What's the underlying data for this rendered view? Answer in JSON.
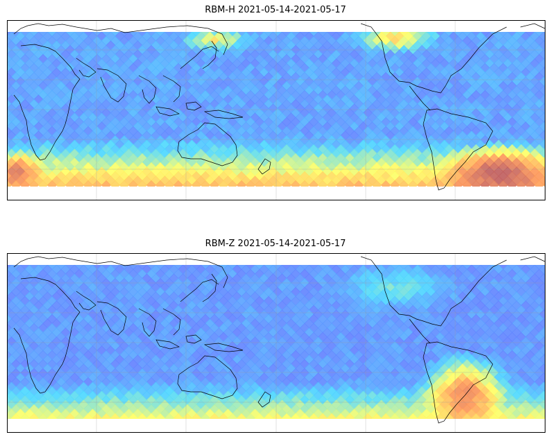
{
  "panels": [
    {
      "title": "RBM-H 2021-05-14-2021-05-17",
      "variable": "RBM-H",
      "date_range": "2021-05-14-2021-05-17",
      "colormap": "jet",
      "projection": "PlateCarree (Pacific-centred)",
      "gridlines": true,
      "dominant_hotspots": [
        "southern mid-latitude band",
        "South Atlantic / east of South America",
        "north-east Pacific / North Atlantic coast of North America",
        "north-west Pacific near Japan"
      ]
    },
    {
      "title": "RBM-Z 2021-05-14-2021-05-17",
      "variable": "RBM-Z",
      "date_range": "2021-05-14-2021-05-17",
      "colormap": "jet",
      "projection": "PlateCarree (Pacific-centred)",
      "gridlines": true,
      "dominant_hotspots": [
        "southern South America / South Atlantic",
        "southern mid-latitude band"
      ]
    }
  ],
  "colors": {
    "low": "#6a6cff",
    "mid": "#4ed8ff",
    "high_mid": "#ffff66",
    "high": "#ff9a5a",
    "max": "#c06060"
  }
}
